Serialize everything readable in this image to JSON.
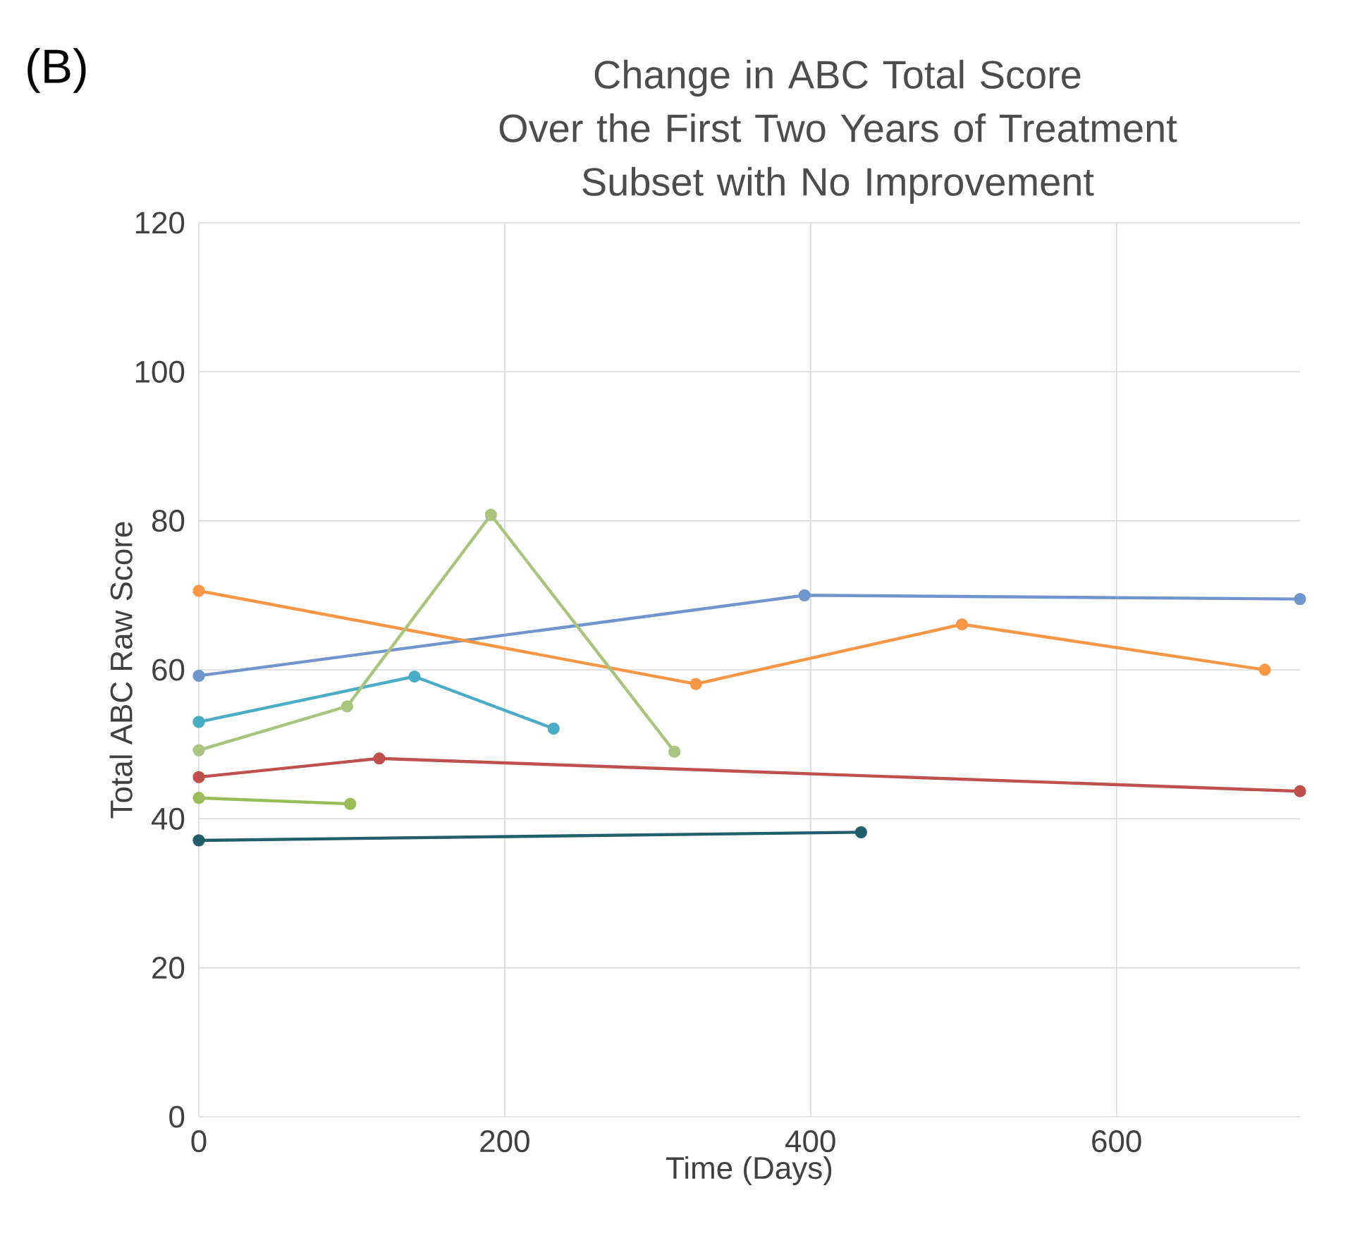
{
  "chart_data": {
    "type": "line",
    "title": "Change in ABC Total Score",
    "subtitle": "Over the First Two Years of Treatment Subset with No Improvement",
    "annotations": [
      "(B)"
    ],
    "xlabel": "Time (Days)",
    "ylabel": "Total ABC Raw Score",
    "xlim": [
      0,
      720
    ],
    "xticks": [
      0,
      200,
      400,
      600
    ],
    "ylim": [
      0,
      120
    ],
    "yticks": [
      0,
      20,
      40,
      60,
      80,
      100,
      120
    ],
    "grid": true,
    "marker": "circle",
    "line_style": "solid",
    "series": [
      {
        "color": "#7094cc",
        "x": [
          0,
          396,
          720
        ],
        "values": [
          59.2,
          70.0,
          69.5
        ]
      },
      {
        "color": "#f79646",
        "x": [
          0,
          325,
          499,
          697
        ],
        "values": [
          70.6,
          58.1,
          66.1,
          60.0
        ]
      },
      {
        "color": "#4bacc6",
        "x": [
          0,
          141,
          232
        ],
        "values": [
          53.0,
          59.1,
          52.1
        ]
      },
      {
        "color": "#a9c47f",
        "x": [
          0,
          97,
          191,
          311
        ],
        "values": [
          49.2,
          55.1,
          80.8,
          49.0
        ]
      },
      {
        "color": "#c0504d",
        "x": [
          0,
          118,
          720
        ],
        "values": [
          45.6,
          48.1,
          43.7
        ]
      },
      {
        "color": "#9bbb59",
        "x": [
          0,
          99
        ],
        "values": [
          42.8,
          42.0
        ]
      },
      {
        "color": "#215f6e",
        "x": [
          0,
          433
        ],
        "values": [
          37.1,
          38.2
        ]
      }
    ]
  }
}
